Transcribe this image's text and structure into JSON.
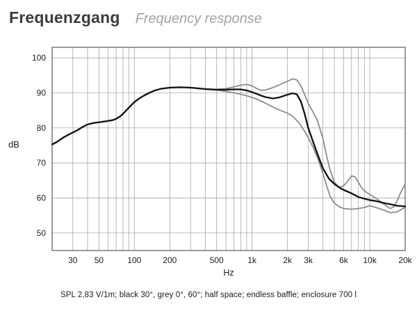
{
  "header": {
    "title_de": "Frequenzgang",
    "title_en": "Frequency response"
  },
  "caption": "SPL 2,83 V/1m; black 30°, grey 0°, 60°; half space; endless baffle; enclosure 700 l",
  "chart_data": {
    "type": "line",
    "title": "Frequenzgang / Frequency response",
    "xlabel": "Hz",
    "ylabel": "dB",
    "xscale": "log",
    "xlim": [
      20,
      20000
    ],
    "ylim": [
      45,
      103
    ],
    "grid": {
      "vertical": "log-minor-decades",
      "horizontal_step_db": 10
    },
    "legend_position": "none (described in caption)",
    "colors": {
      "black_curve": "#151515",
      "grey_curve": "#8c8c8c",
      "grid": "#9a9a9a",
      "frame": "#4a4a4a"
    },
    "yticks": [
      {
        "value": 100,
        "label": "100"
      },
      {
        "value": 90,
        "label": "90"
      },
      {
        "value": 80,
        "label": "80"
      },
      {
        "value": 70,
        "label": "70"
      },
      {
        "value": 60,
        "label": "60"
      },
      {
        "value": 50,
        "label": "50"
      }
    ],
    "xticks": [
      {
        "value": 30,
        "label": "30"
      },
      {
        "value": 50,
        "label": "50"
      },
      {
        "value": 100,
        "label": "100"
      },
      {
        "value": 200,
        "label": "200"
      },
      {
        "value": 500,
        "label": "500"
      },
      {
        "value": 1000,
        "label": "1k"
      },
      {
        "value": 2000,
        "label": "2k"
      },
      {
        "value": 3000,
        "label": "3k"
      },
      {
        "value": 6000,
        "label": "6k"
      },
      {
        "value": 10000,
        "label": "10k"
      },
      {
        "value": 20000,
        "label": "20k"
      }
    ],
    "series": [
      {
        "name": "grey 0° (on axis)",
        "color": "#8c8c8c",
        "width": 1.8,
        "points": [
          [
            400,
            91.1
          ],
          [
            500,
            91.0
          ],
          [
            600,
            91.2
          ],
          [
            700,
            91.7
          ],
          [
            800,
            92.2
          ],
          [
            900,
            92.4
          ],
          [
            1000,
            92.0
          ],
          [
            1100,
            91.2
          ],
          [
            1200,
            90.7
          ],
          [
            1300,
            90.8
          ],
          [
            1500,
            91.5
          ],
          [
            1700,
            92.3
          ],
          [
            2000,
            93.3
          ],
          [
            2200,
            94.0
          ],
          [
            2400,
            93.7
          ],
          [
            2600,
            92.0
          ],
          [
            2800,
            89.5
          ],
          [
            3000,
            87.0
          ],
          [
            3300,
            84.5
          ],
          [
            3600,
            82.0
          ],
          [
            4000,
            77.0
          ],
          [
            4300,
            72.0
          ],
          [
            4600,
            68.0
          ],
          [
            5000,
            64.5
          ],
          [
            5500,
            63.0
          ],
          [
            6000,
            63.5
          ],
          [
            6500,
            64.8
          ],
          [
            7000,
            66.3
          ],
          [
            7500,
            66.0
          ],
          [
            8000,
            64.5
          ],
          [
            8500,
            63.0
          ],
          [
            9000,
            62.0
          ],
          [
            10000,
            61.0
          ],
          [
            11000,
            60.2
          ],
          [
            12000,
            59.3
          ],
          [
            13000,
            58.4
          ],
          [
            14000,
            57.6
          ],
          [
            15000,
            57.0
          ],
          [
            16000,
            57.5
          ],
          [
            17000,
            59.0
          ],
          [
            18000,
            61.0
          ],
          [
            20000,
            64.0
          ]
        ]
      },
      {
        "name": "grey 60°",
        "color": "#8c8c8c",
        "width": 1.8,
        "points": [
          [
            400,
            91.0
          ],
          [
            500,
            90.8
          ],
          [
            600,
            90.4
          ],
          [
            700,
            90.0
          ],
          [
            800,
            89.6
          ],
          [
            900,
            89.2
          ],
          [
            1000,
            88.7
          ],
          [
            1100,
            88.2
          ],
          [
            1200,
            87.6
          ],
          [
            1400,
            86.5
          ],
          [
            1600,
            85.5
          ],
          [
            1800,
            84.8
          ],
          [
            2000,
            84.2
          ],
          [
            2200,
            83.4
          ],
          [
            2500,
            81.5
          ],
          [
            2800,
            79.0
          ],
          [
            3000,
            77.2
          ],
          [
            3300,
            74.5
          ],
          [
            3600,
            71.5
          ],
          [
            4000,
            67.0
          ],
          [
            4300,
            63.5
          ],
          [
            4600,
            60.5
          ],
          [
            5000,
            58.5
          ],
          [
            5500,
            57.5
          ],
          [
            6000,
            57.0
          ],
          [
            7000,
            56.8
          ],
          [
            8000,
            57.0
          ],
          [
            9000,
            57.3
          ],
          [
            10000,
            57.8
          ],
          [
            11000,
            57.4
          ],
          [
            12000,
            57.0
          ],
          [
            13000,
            56.6
          ],
          [
            15000,
            55.8
          ],
          [
            17000,
            56.0
          ],
          [
            18000,
            56.5
          ],
          [
            20000,
            57.3
          ]
        ]
      },
      {
        "name": "black 30°",
        "color": "#151515",
        "width": 2.4,
        "points": [
          [
            20,
            75.3
          ],
          [
            22,
            76.0
          ],
          [
            25,
            77.3
          ],
          [
            28,
            78.2
          ],
          [
            30,
            78.7
          ],
          [
            33,
            79.4
          ],
          [
            36,
            80.2
          ],
          [
            40,
            81.0
          ],
          [
            45,
            81.4
          ],
          [
            50,
            81.6
          ],
          [
            55,
            81.8
          ],
          [
            60,
            82.0
          ],
          [
            65,
            82.2
          ],
          [
            70,
            82.6
          ],
          [
            75,
            83.2
          ],
          [
            80,
            84.0
          ],
          [
            90,
            85.8
          ],
          [
            100,
            87.4
          ],
          [
            110,
            88.4
          ],
          [
            120,
            89.2
          ],
          [
            130,
            89.8
          ],
          [
            140,
            90.3
          ],
          [
            150,
            90.7
          ],
          [
            170,
            91.2
          ],
          [
            200,
            91.5
          ],
          [
            250,
            91.6
          ],
          [
            300,
            91.5
          ],
          [
            400,
            91.1
          ],
          [
            500,
            90.9
          ],
          [
            600,
            90.9
          ],
          [
            700,
            91.0
          ],
          [
            800,
            91.0
          ],
          [
            900,
            90.7
          ],
          [
            1000,
            90.2
          ],
          [
            1100,
            89.7
          ],
          [
            1200,
            89.2
          ],
          [
            1300,
            88.8
          ],
          [
            1500,
            88.4
          ],
          [
            1700,
            88.7
          ],
          [
            2000,
            89.5
          ],
          [
            2200,
            89.9
          ],
          [
            2400,
            89.6
          ],
          [
            2600,
            87.5
          ],
          [
            2800,
            84.0
          ],
          [
            3000,
            80.0
          ],
          [
            3300,
            76.0
          ],
          [
            3600,
            72.5
          ],
          [
            4000,
            68.5
          ],
          [
            4500,
            65.5
          ],
          [
            5000,
            64.0
          ],
          [
            5500,
            63.0
          ],
          [
            6000,
            62.3
          ],
          [
            6500,
            61.8
          ],
          [
            7000,
            61.3
          ],
          [
            7500,
            60.8
          ],
          [
            8000,
            60.3
          ],
          [
            9000,
            59.8
          ],
          [
            10000,
            59.4
          ],
          [
            11000,
            59.2
          ],
          [
            12000,
            58.9
          ],
          [
            13000,
            58.6
          ],
          [
            15000,
            58.2
          ],
          [
            17000,
            57.8
          ],
          [
            20000,
            57.6
          ]
        ]
      }
    ]
  }
}
